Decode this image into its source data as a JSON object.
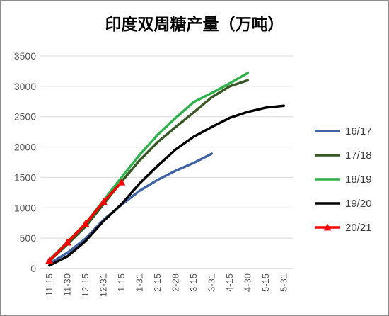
{
  "chart_data": {
    "type": "line",
    "title": "印度双周糖产量（万吨）",
    "xlabel": "",
    "ylabel": "",
    "categories": [
      "11-15",
      "11-30",
      "12-15",
      "12-31",
      "1-15",
      "1-31",
      "2-15",
      "2-28",
      "3-15",
      "3-31",
      "4-15",
      "4-30",
      "5-15",
      "5-31"
    ],
    "ylim": [
      0,
      3500
    ],
    "yticks": [
      0,
      500,
      1000,
      1500,
      2000,
      2500,
      3000,
      3500
    ],
    "grid": true,
    "legend_position": "right",
    "series": [
      {
        "name": "16/17",
        "color": "#3f63a4",
        "marker": "none",
        "values": [
          80,
          260,
          490,
          800,
          1050,
          1280,
          1460,
          1610,
          1740,
          1890,
          null,
          null,
          null,
          null
        ]
      },
      {
        "name": "17/18",
        "color": "#375623",
        "marker": "none",
        "values": [
          120,
          400,
          690,
          1060,
          1430,
          1780,
          2080,
          2330,
          2570,
          2820,
          3000,
          3100,
          null,
          null
        ]
      },
      {
        "name": "18/19",
        "color": "#2fb24c",
        "marker": "none",
        "values": [
          140,
          440,
          740,
          1120,
          1500,
          1870,
          2200,
          2480,
          2740,
          2890,
          3050,
          3220,
          null,
          null
        ]
      },
      {
        "name": "19/20",
        "color": "#000000",
        "marker": "none",
        "values": [
          50,
          200,
          450,
          780,
          1060,
          1400,
          1690,
          1960,
          2170,
          2330,
          2480,
          2580,
          2650,
          2680
        ]
      },
      {
        "name": "20/21",
        "color": "#ff0000",
        "marker": "triangle",
        "values": [
          130,
          430,
          740,
          1100,
          1420,
          null,
          null,
          null,
          null,
          null,
          null,
          null,
          null,
          null
        ]
      }
    ]
  }
}
